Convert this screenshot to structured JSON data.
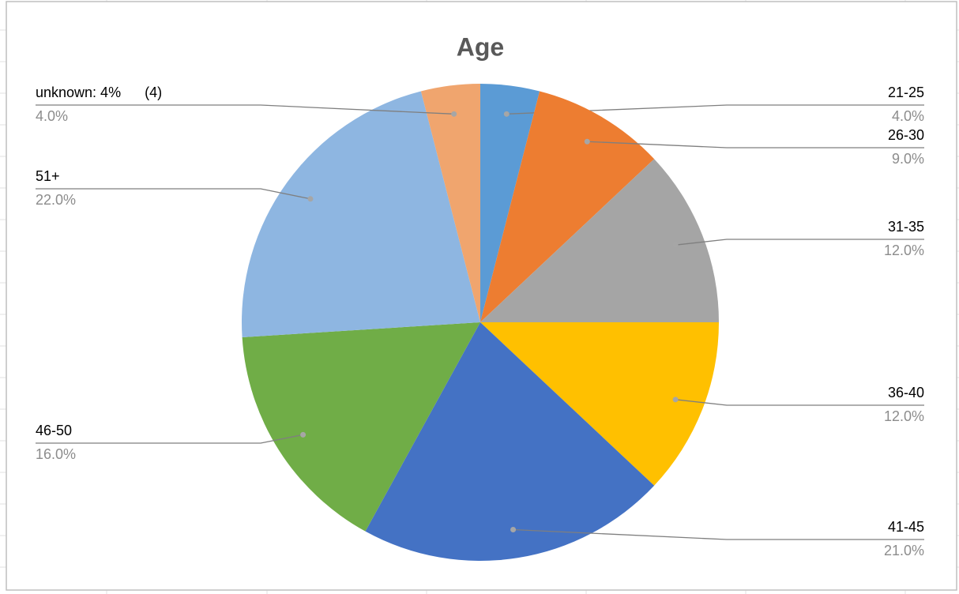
{
  "chart_data": {
    "type": "pie",
    "title": "Age",
    "categories": [
      "21-25",
      "26-30",
      "31-35",
      "36-40",
      "41-45",
      "46-50",
      "51+",
      "unknown: 4%      (4)"
    ],
    "values": [
      4,
      9,
      12,
      12,
      21,
      16,
      22,
      4
    ],
    "value_labels": [
      "4.0%",
      "9.0%",
      "12.0%",
      "12.0%",
      "21.0%",
      "16.0%",
      "22.0%",
      "4.0%"
    ],
    "colors": [
      "#5b9bd5",
      "#ed7d31",
      "#a5a5a5",
      "#ffc000",
      "#4472c4",
      "#70ad47",
      "#8eb6e1",
      "#f0a56e"
    ]
  }
}
